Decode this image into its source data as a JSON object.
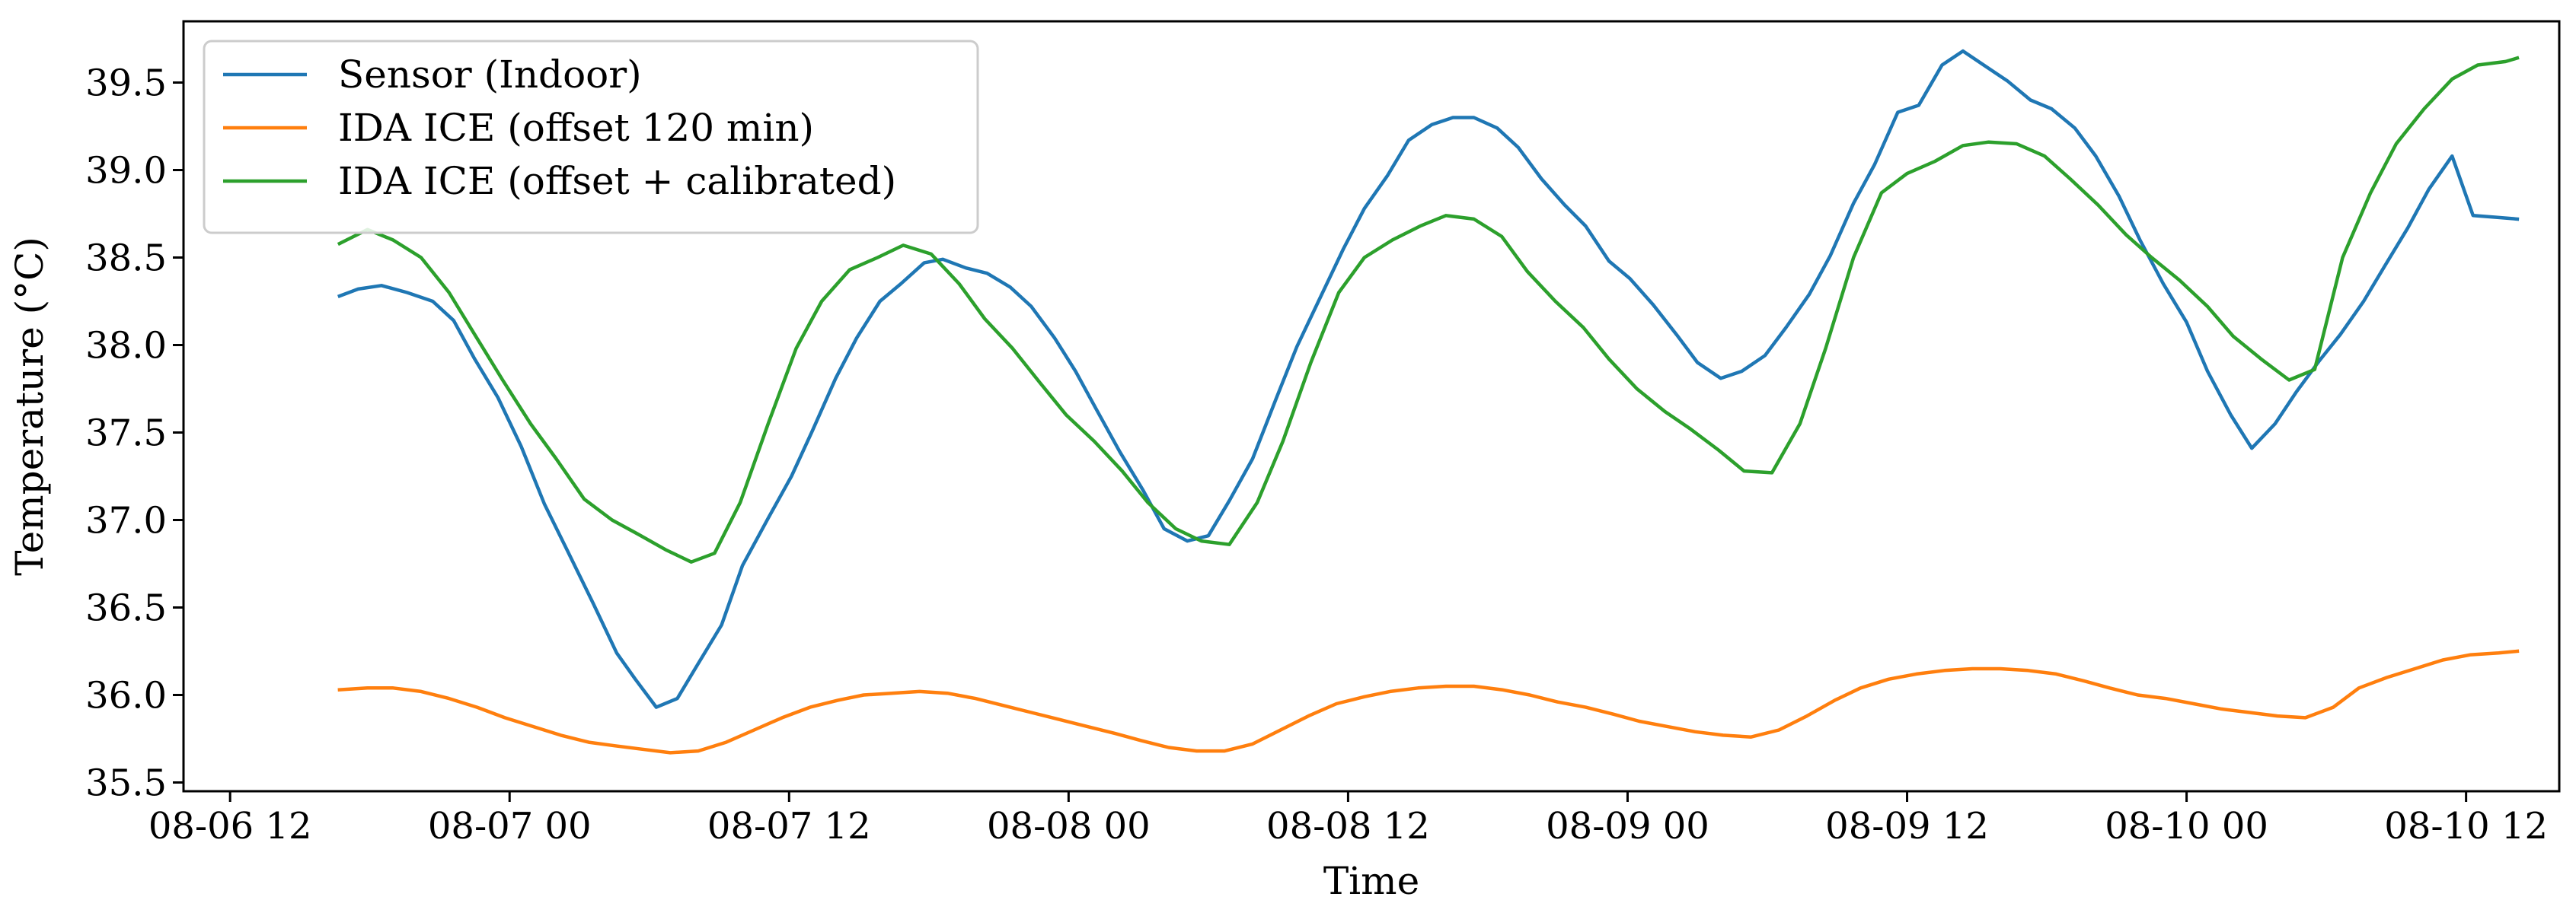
{
  "chart_data": {
    "type": "line",
    "title": "",
    "xlabel": "Time",
    "ylabel": "Temperature (°C)",
    "xlim": [
      -2.0,
      100.0
    ],
    "ylim": [
      35.45,
      39.85
    ],
    "x_ticks": [
      {
        "value": 0,
        "label": "08-06 12"
      },
      {
        "value": 12,
        "label": "08-07 00"
      },
      {
        "value": 24,
        "label": "08-07 12"
      },
      {
        "value": 36,
        "label": "08-08 00"
      },
      {
        "value": 48,
        "label": "08-08 12"
      },
      {
        "value": 60,
        "label": "08-09 00"
      },
      {
        "value": 72,
        "label": "08-09 12"
      },
      {
        "value": 84,
        "label": "08-10 00"
      },
      {
        "value": 96,
        "label": "08-10 12"
      }
    ],
    "y_ticks": [
      {
        "value": 35.5,
        "label": "35.5"
      },
      {
        "value": 36.0,
        "label": "36.0"
      },
      {
        "value": 36.5,
        "label": "36.5"
      },
      {
        "value": 37.0,
        "label": "37.0"
      },
      {
        "value": 37.5,
        "label": "37.5"
      },
      {
        "value": 38.0,
        "label": "38.0"
      },
      {
        "value": 38.5,
        "label": "38.5"
      },
      {
        "value": 39.0,
        "label": "39.0"
      },
      {
        "value": 39.5,
        "label": "39.5"
      }
    ],
    "grid": false,
    "legend_position": "top-left",
    "series": [
      {
        "name": "Sensor (Indoor)",
        "color": "#1f77b4",
        "points": [
          [
            4.7,
            38.28
          ],
          [
            5.5,
            38.32
          ],
          [
            6.5,
            38.34
          ],
          [
            7.6,
            38.3
          ],
          [
            8.7,
            38.25
          ],
          [
            9.6,
            38.14
          ],
          [
            10.5,
            37.92
          ],
          [
            11.5,
            37.7
          ],
          [
            12.5,
            37.42
          ],
          [
            13.5,
            37.09
          ],
          [
            14.5,
            36.82
          ],
          [
            15.6,
            36.52
          ],
          [
            16.6,
            36.24
          ],
          [
            17.4,
            36.09
          ],
          [
            18.3,
            35.93
          ],
          [
            19.2,
            35.98
          ],
          [
            20.1,
            36.18
          ],
          [
            21.1,
            36.4
          ],
          [
            22.0,
            36.74
          ],
          [
            23.1,
            37.01
          ],
          [
            24.1,
            37.25
          ],
          [
            25.0,
            37.51
          ],
          [
            26.0,
            37.81
          ],
          [
            26.9,
            38.04
          ],
          [
            27.9,
            38.25
          ],
          [
            28.8,
            38.35
          ],
          [
            29.8,
            38.47
          ],
          [
            30.6,
            38.49
          ],
          [
            31.6,
            38.44
          ],
          [
            32.5,
            38.41
          ],
          [
            33.5,
            38.33
          ],
          [
            34.4,
            38.22
          ],
          [
            35.4,
            38.04
          ],
          [
            36.3,
            37.85
          ],
          [
            37.2,
            37.63
          ],
          [
            38.2,
            37.39
          ],
          [
            39.2,
            37.17
          ],
          [
            40.1,
            36.95
          ],
          [
            41.1,
            36.88
          ],
          [
            42.0,
            36.91
          ],
          [
            42.9,
            37.11
          ],
          [
            43.9,
            37.35
          ],
          [
            44.9,
            37.69
          ],
          [
            45.8,
            37.99
          ],
          [
            46.8,
            38.27
          ],
          [
            47.8,
            38.55
          ],
          [
            48.7,
            38.78
          ],
          [
            49.7,
            38.97
          ],
          [
            50.6,
            39.17
          ],
          [
            51.6,
            39.26
          ],
          [
            52.5,
            39.3
          ],
          [
            53.4,
            39.3
          ],
          [
            54.4,
            39.24
          ],
          [
            55.3,
            39.13
          ],
          [
            56.3,
            38.95
          ],
          [
            57.3,
            38.8
          ],
          [
            58.2,
            38.68
          ],
          [
            59.2,
            38.48
          ],
          [
            60.1,
            38.38
          ],
          [
            61.1,
            38.23
          ],
          [
            62.1,
            38.06
          ],
          [
            63.0,
            37.9
          ],
          [
            64.0,
            37.81
          ],
          [
            64.9,
            37.85
          ],
          [
            65.9,
            37.94
          ],
          [
            66.8,
            38.1
          ],
          [
            67.8,
            38.29
          ],
          [
            68.7,
            38.51
          ],
          [
            69.7,
            38.81
          ],
          [
            70.6,
            39.03
          ],
          [
            71.6,
            39.33
          ],
          [
            72.5,
            39.37
          ],
          [
            73.5,
            39.6
          ],
          [
            74.4,
            39.68
          ],
          [
            75.4,
            39.59
          ],
          [
            76.3,
            39.51
          ],
          [
            77.3,
            39.4
          ],
          [
            78.2,
            39.35
          ],
          [
            79.2,
            39.24
          ],
          [
            80.1,
            39.08
          ],
          [
            81.1,
            38.85
          ],
          [
            82.0,
            38.6
          ],
          [
            83.0,
            38.35
          ],
          [
            84.0,
            38.13
          ],
          [
            84.9,
            37.85
          ],
          [
            85.9,
            37.6
          ],
          [
            86.8,
            37.41
          ],
          [
            87.8,
            37.55
          ],
          [
            88.7,
            37.73
          ],
          [
            89.7,
            37.91
          ],
          [
            90.6,
            38.06
          ],
          [
            91.6,
            38.25
          ],
          [
            92.5,
            38.45
          ],
          [
            93.5,
            38.67
          ],
          [
            94.4,
            38.89
          ],
          [
            95.4,
            39.08
          ],
          [
            96.3,
            38.74
          ],
          [
            97.3,
            38.73
          ],
          [
            98.2,
            38.72
          ]
        ]
      },
      {
        "name": "IDA ICE (offset 120 min)",
        "color": "#ff7f0e",
        "points": [
          [
            4.7,
            36.03
          ],
          [
            5.9,
            36.04
          ],
          [
            7.0,
            36.04
          ],
          [
            8.2,
            36.02
          ],
          [
            9.4,
            35.98
          ],
          [
            10.6,
            35.93
          ],
          [
            11.8,
            35.87
          ],
          [
            13.0,
            35.82
          ],
          [
            14.2,
            35.77
          ],
          [
            15.4,
            35.73
          ],
          [
            16.5,
            35.71
          ],
          [
            17.7,
            35.69
          ],
          [
            18.9,
            35.67
          ],
          [
            20.1,
            35.68
          ],
          [
            21.3,
            35.73
          ],
          [
            22.5,
            35.8
          ],
          [
            23.7,
            35.87
          ],
          [
            24.9,
            35.93
          ],
          [
            26.1,
            35.97
          ],
          [
            27.2,
            36.0
          ],
          [
            28.4,
            36.01
          ],
          [
            29.6,
            36.02
          ],
          [
            30.8,
            36.01
          ],
          [
            32.0,
            35.98
          ],
          [
            33.2,
            35.94
          ],
          [
            34.4,
            35.9
          ],
          [
            35.6,
            35.86
          ],
          [
            36.8,
            35.82
          ],
          [
            38.0,
            35.78
          ],
          [
            39.1,
            35.74
          ],
          [
            40.3,
            35.7
          ],
          [
            41.5,
            35.68
          ],
          [
            42.7,
            35.68
          ],
          [
            43.9,
            35.72
          ],
          [
            45.1,
            35.8
          ],
          [
            46.3,
            35.88
          ],
          [
            47.5,
            35.95
          ],
          [
            48.7,
            35.99
          ],
          [
            49.8,
            36.02
          ],
          [
            51.0,
            36.04
          ],
          [
            52.2,
            36.05
          ],
          [
            53.4,
            36.05
          ],
          [
            54.6,
            36.03
          ],
          [
            55.8,
            36.0
          ],
          [
            57.0,
            35.96
          ],
          [
            58.2,
            35.93
          ],
          [
            59.4,
            35.89
          ],
          [
            60.5,
            35.85
          ],
          [
            61.7,
            35.82
          ],
          [
            62.9,
            35.79
          ],
          [
            64.1,
            35.77
          ],
          [
            65.3,
            35.76
          ],
          [
            66.5,
            35.8
          ],
          [
            67.7,
            35.88
          ],
          [
            68.9,
            35.97
          ],
          [
            70.0,
            36.04
          ],
          [
            71.2,
            36.09
          ],
          [
            72.4,
            36.12
          ],
          [
            73.6,
            36.14
          ],
          [
            74.8,
            36.15
          ],
          [
            76.0,
            36.15
          ],
          [
            77.2,
            36.14
          ],
          [
            78.4,
            36.12
          ],
          [
            79.6,
            36.08
          ],
          [
            80.7,
            36.04
          ],
          [
            81.9,
            36.0
          ],
          [
            83.1,
            35.98
          ],
          [
            84.3,
            35.95
          ],
          [
            85.5,
            35.92
          ],
          [
            86.7,
            35.9
          ],
          [
            87.9,
            35.88
          ],
          [
            89.1,
            35.87
          ],
          [
            90.3,
            35.93
          ],
          [
            91.4,
            36.04
          ],
          [
            92.6,
            36.1
          ],
          [
            93.8,
            36.15
          ],
          [
            95.0,
            36.2
          ],
          [
            96.2,
            36.23
          ],
          [
            97.4,
            36.24
          ],
          [
            98.2,
            36.25
          ]
        ]
      },
      {
        "name": "IDA ICE (offset + calibrated)",
        "color": "#2ca02c",
        "points": [
          [
            4.7,
            38.58
          ],
          [
            5.9,
            38.66
          ],
          [
            7.0,
            38.6
          ],
          [
            8.2,
            38.5
          ],
          [
            9.4,
            38.3
          ],
          [
            10.5,
            38.06
          ],
          [
            11.7,
            37.8
          ],
          [
            12.9,
            37.55
          ],
          [
            14.0,
            37.35
          ],
          [
            15.2,
            37.12
          ],
          [
            16.4,
            37.0
          ],
          [
            17.5,
            36.92
          ],
          [
            18.7,
            36.83
          ],
          [
            19.8,
            36.76
          ],
          [
            20.8,
            36.81
          ],
          [
            21.9,
            37.1
          ],
          [
            23.1,
            37.55
          ],
          [
            24.3,
            37.98
          ],
          [
            25.4,
            38.25
          ],
          [
            26.6,
            38.43
          ],
          [
            27.8,
            38.5
          ],
          [
            28.9,
            38.57
          ],
          [
            30.1,
            38.52
          ],
          [
            31.3,
            38.35
          ],
          [
            32.4,
            38.15
          ],
          [
            33.6,
            37.98
          ],
          [
            34.8,
            37.78
          ],
          [
            35.9,
            37.6
          ],
          [
            37.1,
            37.45
          ],
          [
            38.3,
            37.28
          ],
          [
            39.4,
            37.1
          ],
          [
            40.6,
            36.95
          ],
          [
            41.7,
            36.88
          ],
          [
            42.9,
            36.86
          ],
          [
            44.1,
            37.1
          ],
          [
            45.2,
            37.45
          ],
          [
            46.4,
            37.9
          ],
          [
            47.6,
            38.3
          ],
          [
            48.7,
            38.5
          ],
          [
            49.9,
            38.6
          ],
          [
            51.1,
            38.68
          ],
          [
            52.2,
            38.74
          ],
          [
            53.4,
            38.72
          ],
          [
            54.6,
            38.62
          ],
          [
            55.7,
            38.42
          ],
          [
            56.9,
            38.25
          ],
          [
            58.1,
            38.1
          ],
          [
            59.2,
            37.92
          ],
          [
            60.4,
            37.75
          ],
          [
            61.6,
            37.62
          ],
          [
            62.7,
            37.52
          ],
          [
            63.9,
            37.4
          ],
          [
            65.0,
            37.28
          ],
          [
            66.2,
            37.27
          ],
          [
            67.4,
            37.55
          ],
          [
            68.5,
            37.98
          ],
          [
            69.7,
            38.5
          ],
          [
            70.9,
            38.87
          ],
          [
            72.0,
            38.98
          ],
          [
            73.2,
            39.05
          ],
          [
            74.4,
            39.14
          ],
          [
            75.5,
            39.16
          ],
          [
            76.7,
            39.15
          ],
          [
            77.9,
            39.08
          ],
          [
            79.0,
            38.95
          ],
          [
            80.2,
            38.8
          ],
          [
            81.4,
            38.63
          ],
          [
            82.5,
            38.5
          ],
          [
            83.7,
            38.37
          ],
          [
            84.9,
            38.22
          ],
          [
            86.0,
            38.05
          ],
          [
            87.2,
            37.92
          ],
          [
            88.4,
            37.8
          ],
          [
            89.5,
            37.86
          ],
          [
            90.7,
            38.5
          ],
          [
            91.9,
            38.87
          ],
          [
            93.0,
            39.15
          ],
          [
            94.2,
            39.35
          ],
          [
            95.4,
            39.52
          ],
          [
            96.5,
            39.6
          ],
          [
            97.7,
            39.62
          ],
          [
            98.2,
            39.64
          ]
        ]
      }
    ]
  }
}
